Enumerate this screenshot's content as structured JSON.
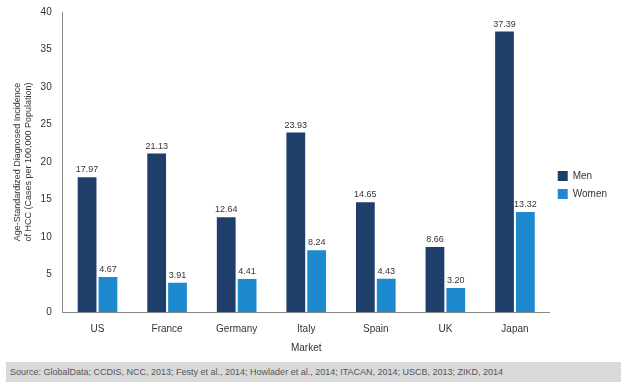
{
  "chart_data": {
    "type": "bar",
    "categories": [
      "US",
      "France",
      "Germany",
      "Italy",
      "Spain",
      "UK",
      "Japan"
    ],
    "series": [
      {
        "name": "Men",
        "color": "#1f3f6b",
        "values": [
          17.97,
          21.13,
          12.64,
          23.93,
          14.65,
          8.66,
          37.39
        ],
        "value_labels": [
          "17.97",
          "21.13",
          "12.64",
          "23.93",
          "14.65",
          "8.66",
          "37.39"
        ]
      },
      {
        "name": "Women",
        "color": "#1d8ad0",
        "values": [
          4.67,
          3.91,
          4.41,
          8.24,
          4.43,
          3.2,
          13.32
        ],
        "value_labels": [
          "4.67",
          "3.91",
          "4.41",
          "8.24",
          "4.43",
          "3.20",
          "13.32"
        ]
      }
    ],
    "x_label": "Market",
    "y_label": "Age-Standardized Diagnosed Incidence of HCC (Cases per 100,000 Population)",
    "ylim": [
      0,
      40
    ],
    "yticks": [
      0,
      5,
      10,
      15,
      20,
      25,
      30,
      35,
      40
    ],
    "grid": false,
    "legend": "right",
    "data_labels": true,
    "source": "Source: GlobalData; CCDIS, NCC, 2013; Festy et al., 2014; Howlader et al., 2014; ITACAN, 2014; USCB, 2013; ZIKD, 2014"
  }
}
